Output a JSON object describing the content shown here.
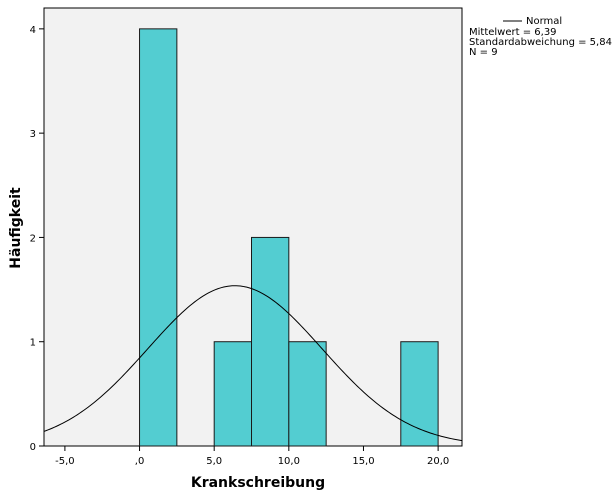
{
  "chart_data": {
    "type": "bar",
    "subtype": "histogram",
    "xlabel": "Krankschreibung",
    "ylabel": "Häufigkeit",
    "xlim": [
      -6.4,
      21.6
    ],
    "ylim": [
      0,
      4.2
    ],
    "x_ticks": [
      -5.0,
      0.0,
      5.0,
      10.0,
      15.0,
      20.0
    ],
    "x_tick_labels": [
      "-5,0",
      ",0",
      "5,0",
      "10,0",
      "15,0",
      "20,0"
    ],
    "y_ticks": [
      0,
      1,
      2,
      3,
      4
    ],
    "y_tick_labels": [
      "0",
      "1",
      "2",
      "3",
      "4"
    ],
    "bins": [
      {
        "x0": 0.0,
        "x1": 2.5,
        "count": 4
      },
      {
        "x0": 2.5,
        "x1": 5.0,
        "count": 0
      },
      {
        "x0": 5.0,
        "x1": 7.5,
        "count": 1
      },
      {
        "x0": 7.5,
        "x1": 10.0,
        "count": 2
      },
      {
        "x0": 10.0,
        "x1": 12.5,
        "count": 1
      },
      {
        "x0": 12.5,
        "x1": 15.0,
        "count": 0
      },
      {
        "x0": 15.0,
        "x1": 17.5,
        "count": 0
      },
      {
        "x0": 17.5,
        "x1": 20.0,
        "count": 1
      }
    ],
    "normal_curve": {
      "mean": 6.39,
      "sd": 5.84,
      "n": 9
    },
    "legend": {
      "placement": "top-right",
      "entry": "Normal",
      "lines": [
        "Mittelwert = 6,39",
        "Standardabweichung = 5,84",
        "N = 9"
      ]
    },
    "colors": {
      "bar_fill": "#53cdd1",
      "bar_stroke": "#1a1a1a",
      "plot_background": "#f2f2f2",
      "curve": "#000000"
    },
    "grid": false
  }
}
